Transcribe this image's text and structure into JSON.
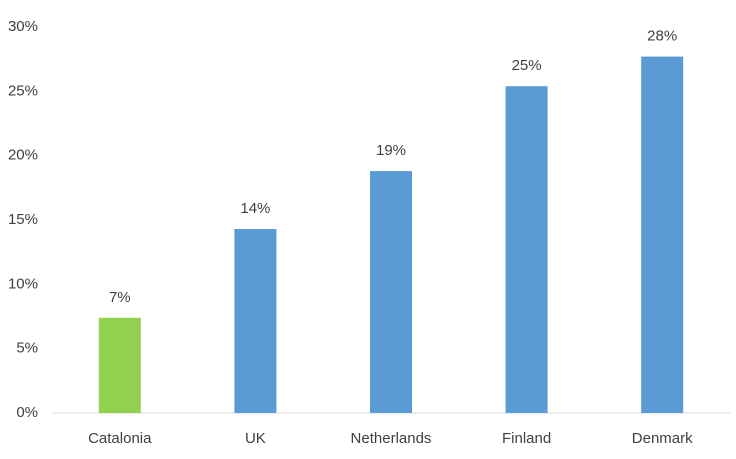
{
  "chart_data": {
    "type": "bar",
    "categories": [
      "Catalonia",
      "UK",
      "Netherlands",
      "Finland",
      "Denmark"
    ],
    "values": [
      7.4,
      14.3,
      18.8,
      25.4,
      27.7
    ],
    "value_labels": [
      "7%",
      "14%",
      "19%",
      "25%",
      "28%"
    ],
    "colors": [
      "#92d050",
      "#5b9bd5",
      "#5b9bd5",
      "#5b9bd5",
      "#5b9bd5"
    ],
    "ylim": [
      0,
      30
    ],
    "yticks": [
      {
        "value": 0,
        "label": "0%"
      },
      {
        "value": 5,
        "label": "5%"
      },
      {
        "value": 10,
        "label": "10%"
      },
      {
        "value": 15,
        "label": "15%"
      },
      {
        "value": 20,
        "label": "20%"
      },
      {
        "value": 25,
        "label": "25%"
      },
      {
        "value": 30,
        "label": "30%"
      }
    ],
    "grid": false
  }
}
